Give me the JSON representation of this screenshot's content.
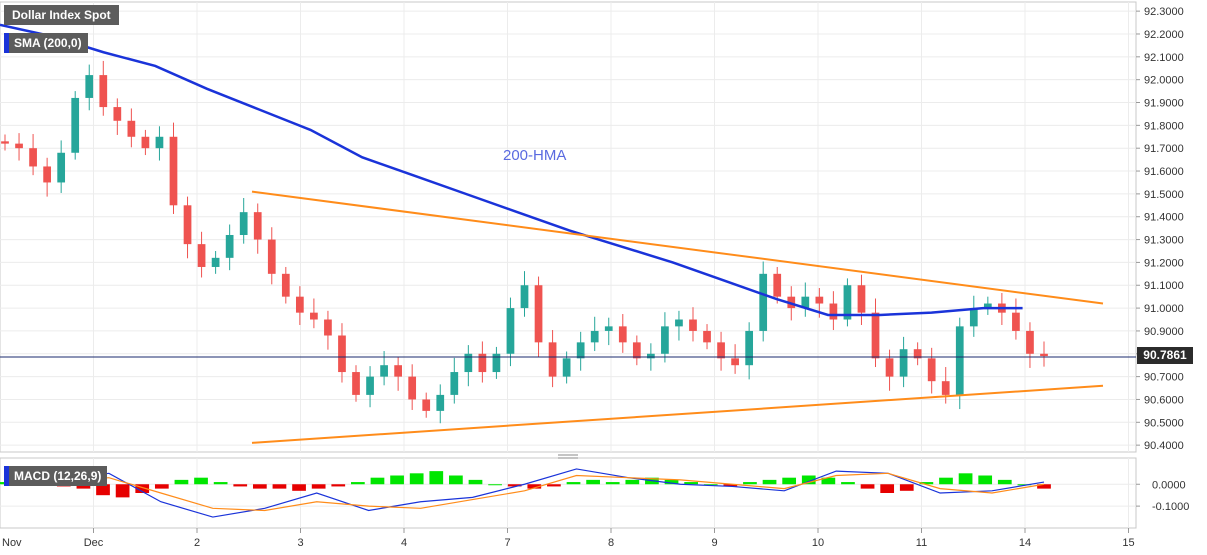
{
  "title": "Dollar Index Spot",
  "indicators": {
    "sma_label": "SMA (200,0)",
    "macd_label": "MACD (12,26,9)"
  },
  "current_price": "90.7861",
  "annotation": "200-HMA",
  "colors": {
    "bull": "#26a69a",
    "bear": "#ef5350",
    "sma": "#1a33d9",
    "trend": "#ff8c1a",
    "hist_pos": "#00e600",
    "hist_neg": "#e60000",
    "macd_line": "#1a33d9",
    "signal_line": "#ff8c1a"
  },
  "chart_data": [
    {
      "type": "candlestick",
      "title": "Dollar Index Spot",
      "y_ticks": [
        "92.3000",
        "92.2000",
        "92.1000",
        "92.0000",
        "91.9000",
        "91.8000",
        "91.7000",
        "91.6000",
        "91.5000",
        "91.4000",
        "91.3000",
        "91.2000",
        "91.1000",
        "91.0000",
        "90.9000",
        "90.8000",
        "90.7000",
        "90.6000",
        "90.5000",
        "90.4000"
      ],
      "ylim": [
        90.37,
        92.34
      ],
      "x_ticks": [
        "Nov",
        "Dec",
        "2",
        "3",
        "4",
        "7",
        "8",
        "9",
        "10",
        "11",
        "14",
        "15"
      ],
      "x_tick_pos": [
        0,
        1,
        2,
        3,
        4,
        5,
        6,
        7,
        8,
        9,
        10,
        11
      ],
      "xlim": [
        0.0,
        11.12
      ],
      "close_series": [
        91.72,
        91.7,
        91.62,
        91.55,
        91.68,
        91.92,
        92.02,
        91.88,
        91.82,
        91.75,
        91.7,
        91.75,
        91.45,
        91.28,
        91.18,
        91.22,
        91.32,
        91.42,
        91.3,
        91.15,
        91.05,
        90.98,
        90.95,
        90.88,
        90.72,
        90.62,
        90.7,
        90.75,
        90.7,
        90.6,
        90.55,
        90.62,
        90.72,
        90.8,
        90.72,
        90.8,
        91.0,
        91.1,
        90.85,
        90.7,
        90.78,
        90.85,
        90.9,
        90.92,
        90.85,
        90.78,
        90.8,
        90.92,
        90.95,
        90.9,
        90.85,
        90.78,
        90.75,
        90.9,
        91.15,
        91.05,
        91.0,
        91.05,
        91.02,
        90.95,
        91.1,
        90.98,
        90.78,
        90.7,
        90.82,
        90.78,
        90.68,
        90.62,
        90.92,
        91.0,
        91.02,
        90.98,
        90.9,
        90.8,
        90.79
      ],
      "sma_200": {
        "name": "SMA (200,0)",
        "x": [
          0,
          0.5,
          1,
          1.5,
          2,
          2.5,
          3,
          3.5,
          4,
          4.5,
          5,
          5.5,
          6,
          6.5,
          7,
          7.5,
          8,
          8.5,
          9,
          9.5,
          9.88
        ],
        "y": [
          92.24,
          92.19,
          92.12,
          92.06,
          91.96,
          91.87,
          91.78,
          91.66,
          91.58,
          91.5,
          91.42,
          91.34,
          91.27,
          91.2,
          91.12,
          91.04,
          90.97,
          90.97,
          90.98,
          91.0,
          91.0
        ]
      },
      "trendlines": [
        {
          "x": [
            1.5,
            11.0
          ],
          "y": [
            91.51,
            91.02
          ]
        },
        {
          "x": [
            1.5,
            11.0
          ],
          "y": [
            90.41,
            90.66
          ]
        }
      ],
      "current_price_line": 90.7861
    },
    {
      "type": "macd",
      "title": "MACD (12,26,9)",
      "y_ticks": [
        "0.0000",
        "-0.1000"
      ],
      "ylim": [
        -0.2,
        0.12
      ],
      "histogram": [
        0.01,
        0.02,
        0.0,
        -0.01,
        -0.02,
        -0.05,
        -0.06,
        -0.04,
        -0.02,
        0.02,
        0.03,
        0.01,
        -0.01,
        -0.02,
        -0.02,
        -0.03,
        -0.02,
        -0.01,
        0.01,
        0.03,
        0.04,
        0.05,
        0.06,
        0.04,
        0.02,
        0.0,
        -0.01,
        -0.02,
        -0.01,
        0.01,
        0.02,
        0.01,
        0.02,
        0.03,
        0.02,
        0.01,
        0.0,
        -0.01,
        0.01,
        0.02,
        0.03,
        0.04,
        0.03,
        0.01,
        -0.02,
        -0.04,
        -0.03,
        0.01,
        0.03,
        0.05,
        0.04,
        0.02,
        0.0,
        -0.02
      ],
      "macd_line": {
        "name": "MACD",
        "x": [
          0,
          0.5,
          1,
          1.5,
          2,
          2.5,
          3,
          3.5,
          4,
          4.5,
          5,
          5.5,
          6,
          6.5,
          7,
          7.5,
          8,
          8.5,
          9,
          9.5,
          10
        ],
        "y": [
          0.03,
          0.02,
          0.05,
          -0.08,
          -0.15,
          -0.11,
          -0.04,
          -0.12,
          -0.08,
          -0.06,
          0.0,
          0.07,
          0.03,
          0.0,
          -0.01,
          -0.03,
          0.06,
          0.05,
          -0.04,
          -0.03,
          0.01
        ]
      },
      "signal_line": {
        "name": "Signal",
        "x": [
          0,
          0.5,
          1,
          1.5,
          2,
          2.5,
          3,
          3.5,
          4,
          4.5,
          5,
          5.5,
          6,
          6.5,
          7,
          7.5,
          8,
          8.5,
          9,
          9.5,
          10
        ],
        "y": [
          0.02,
          0.02,
          0.03,
          -0.04,
          -0.11,
          -0.12,
          -0.08,
          -0.1,
          -0.11,
          -0.07,
          -0.03,
          0.04,
          0.03,
          0.02,
          0.0,
          -0.02,
          0.04,
          0.05,
          -0.02,
          -0.04,
          0.0
        ]
      }
    }
  ]
}
